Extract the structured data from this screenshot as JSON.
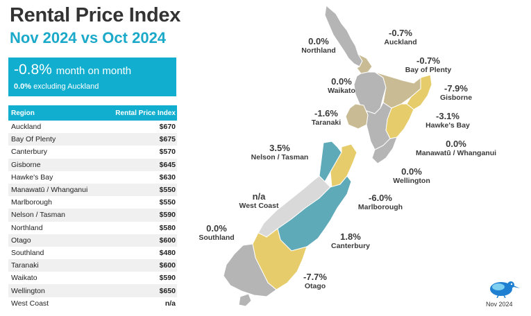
{
  "header": {
    "title": "Rental Price Index",
    "subtitle": "Nov 2024 vs Oct 2024"
  },
  "summary": {
    "change": "-0.8%",
    "change_label": "month on month",
    "ex_value": "0.0%",
    "ex_label": "excluding Auckland"
  },
  "table": {
    "col_region": "Region",
    "col_index": "Rental Price Index",
    "rows": [
      {
        "region": "Auckland",
        "value": "$670"
      },
      {
        "region": "Bay Of Plenty",
        "value": "$675"
      },
      {
        "region": "Canterbury",
        "value": "$570"
      },
      {
        "region": "Gisborne",
        "value": "$645"
      },
      {
        "region": "Hawke's Bay",
        "value": "$630"
      },
      {
        "region": "Manawatū / Whanganui",
        "value": "$550"
      },
      {
        "region": "Marlborough",
        "value": "$550"
      },
      {
        "region": "Nelson / Tasman",
        "value": "$590"
      },
      {
        "region": "Northland",
        "value": "$580"
      },
      {
        "region": "Otago",
        "value": "$600"
      },
      {
        "region": "Southland",
        "value": "$480"
      },
      {
        "region": "Taranaki",
        "value": "$600"
      },
      {
        "region": "Waikato",
        "value": "$590"
      },
      {
        "region": "Wellington",
        "value": "$650"
      },
      {
        "region": "West Coast",
        "value": "n/a"
      }
    ]
  },
  "map_labels": [
    {
      "key": "northland",
      "pct": "0.0%",
      "name": "Northland"
    },
    {
      "key": "auckland",
      "pct": "-0.7%",
      "name": "Auckland"
    },
    {
      "key": "bop",
      "pct": "-0.7%",
      "name": "Bay of Plenty"
    },
    {
      "key": "waikato",
      "pct": "0.0%",
      "name": "Waikato"
    },
    {
      "key": "gisborne",
      "pct": "-7.9%",
      "name": "Gisborne"
    },
    {
      "key": "taranaki",
      "pct": "-1.6%",
      "name": "Taranaki"
    },
    {
      "key": "hawkes",
      "pct": "-3.1%",
      "name": "Hawke's Bay"
    },
    {
      "key": "manawatu",
      "pct": "0.0%",
      "name": "Manawatū / Whanganui"
    },
    {
      "key": "nelson",
      "pct": "3.5%",
      "name": "Nelson / Tasman"
    },
    {
      "key": "wellington",
      "pct": "0.0%",
      "name": "Wellington"
    },
    {
      "key": "westcoast",
      "pct": "n/a",
      "name": "West Coast"
    },
    {
      "key": "marlborough",
      "pct": "-6.0%",
      "name": "Marlborough"
    },
    {
      "key": "southland",
      "pct": "0.0%",
      "name": "Southland"
    },
    {
      "key": "canterbury",
      "pct": "1.8%",
      "name": "Canterbury"
    },
    {
      "key": "otago",
      "pct": "-7.7%",
      "name": "Otago"
    }
  ],
  "legend_colors": {
    "unchanged": "#b5b5b5",
    "small_decrease": "#c9bb93",
    "large_decrease": "#e6cc6a",
    "increase": "#5faab8",
    "na": "#d9d9d9"
  },
  "logo": {
    "icon": "kiwi-bird-icon"
  },
  "footer": {
    "date": "Nov 2024"
  }
}
